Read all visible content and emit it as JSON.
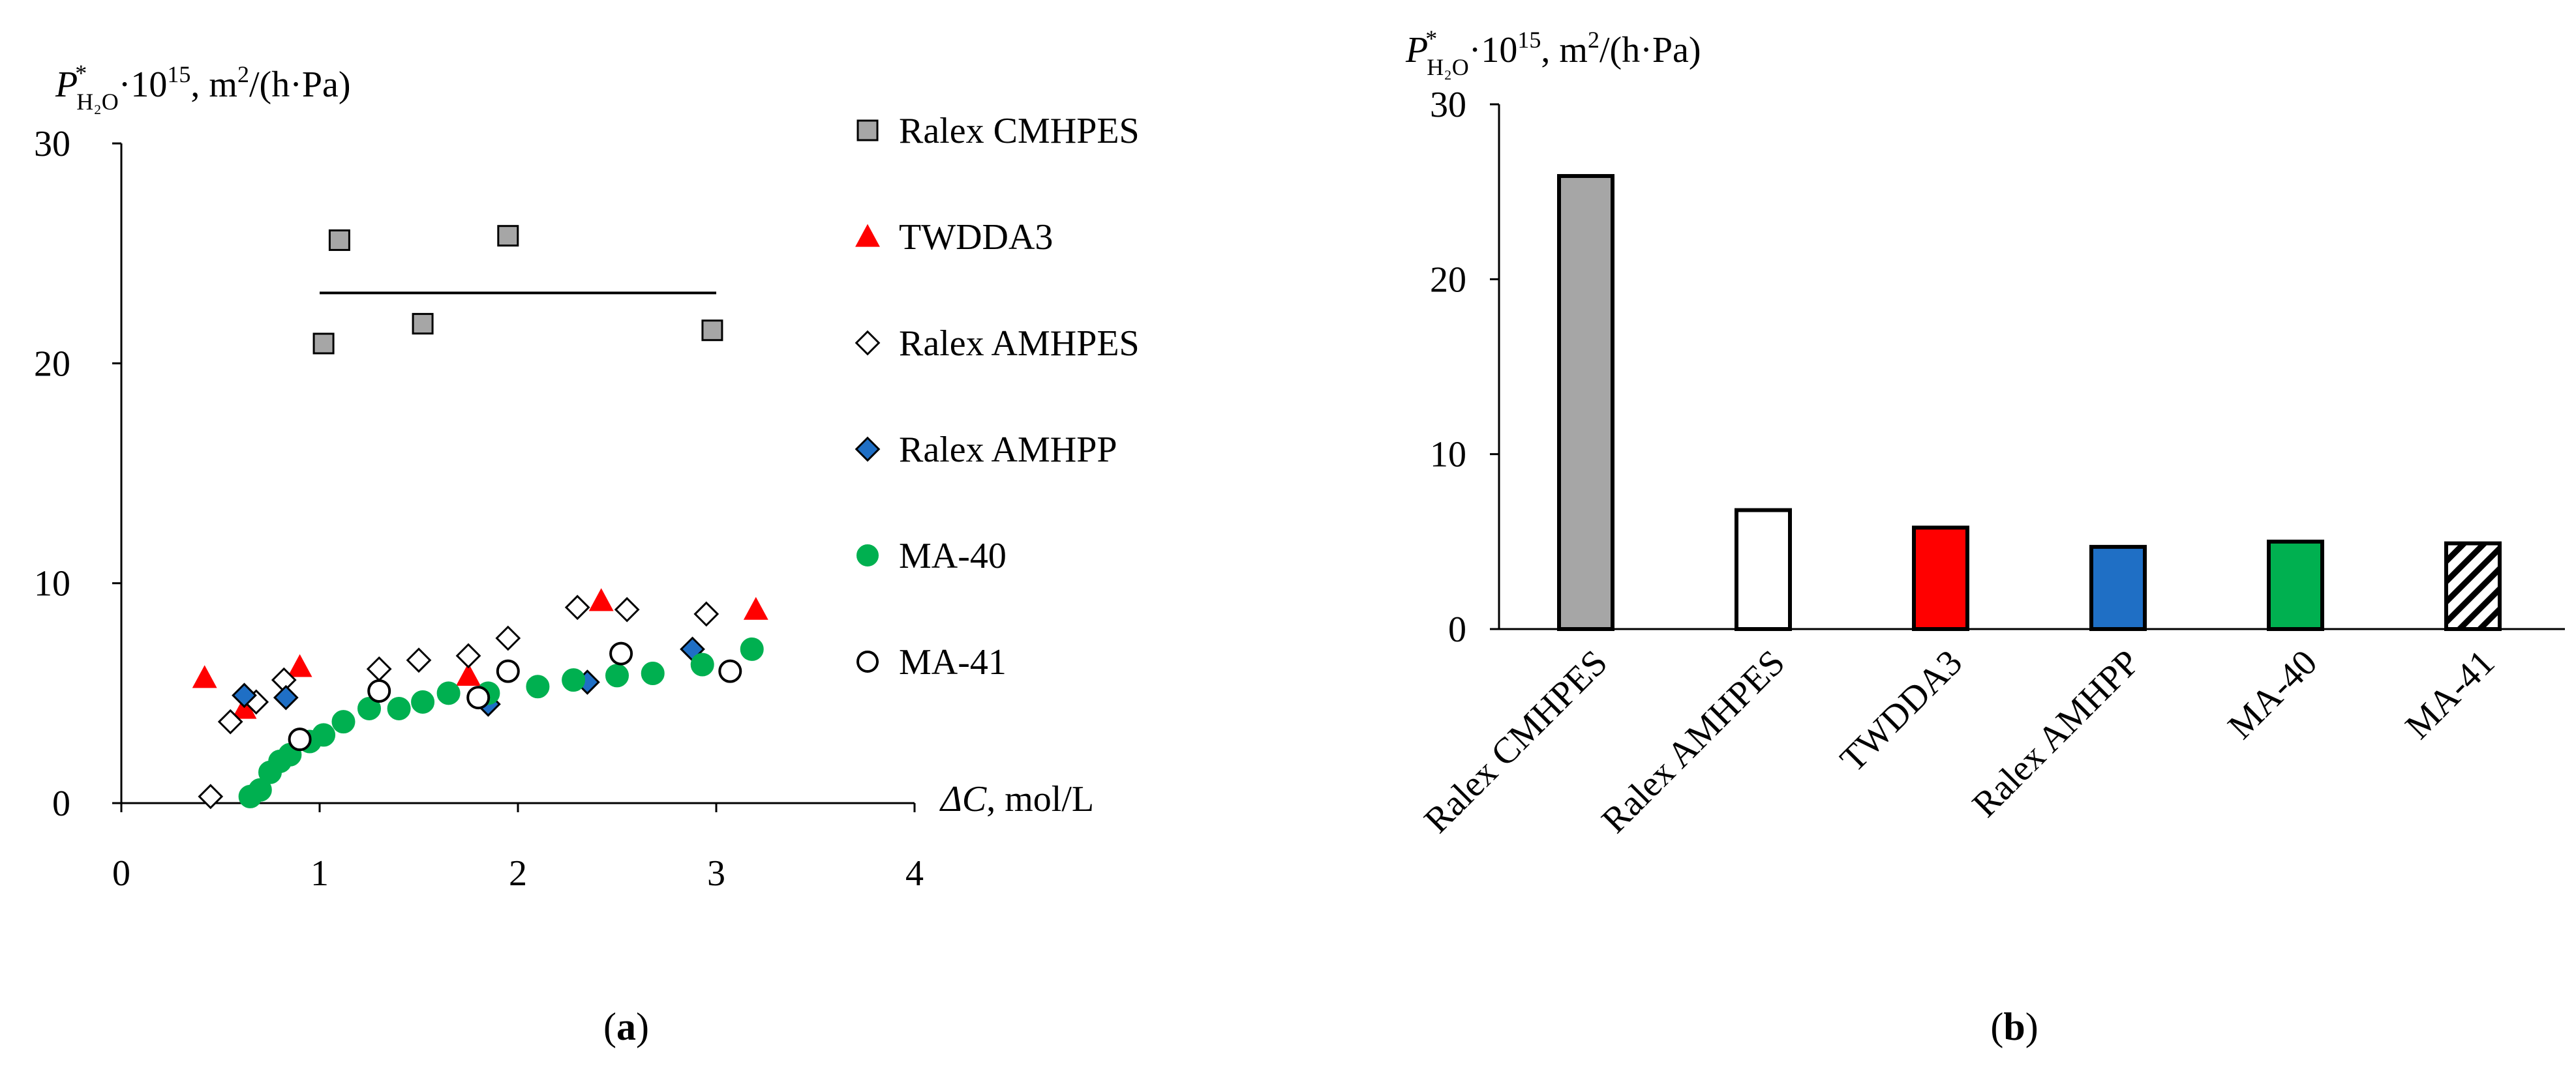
{
  "chart_data": [
    {
      "type": "scatter",
      "panel_label": "a",
      "ylabel": {
        "symbol": "P",
        "superscript": "*",
        "subscript": "H₂O",
        "multiplier": "·10",
        "exponent": "15",
        "units": ", m",
        "units_exp": "2",
        "units_rest": "/(h·Pa)"
      },
      "xlabel": {
        "symbol": "ΔC",
        "units": ", mol/L"
      },
      "xlim": [
        0,
        4
      ],
      "ylim": [
        0,
        30
      ],
      "x_ticks": [
        "0",
        "1",
        "2",
        "3",
        "4"
      ],
      "y_ticks": [
        "0",
        "10",
        "20",
        "30"
      ],
      "series": [
        {
          "name": "Ralex CMHPES",
          "marker": "square",
          "fill": "#a6a6a6",
          "stroke": "#000000",
          "points": [
            [
              1.02,
              20.9
            ],
            [
              1.1,
              25.6
            ],
            [
              1.52,
              21.8
            ],
            [
              1.95,
              25.8
            ],
            [
              2.98,
              21.5
            ]
          ]
        },
        {
          "name": "TWDDA3",
          "marker": "triangle",
          "fill": "#ff0000",
          "stroke": "#ff0000",
          "points": [
            [
              0.42,
              5.7
            ],
            [
              0.62,
              4.3
            ],
            [
              0.9,
              6.2
            ],
            [
              1.75,
              5.8
            ],
            [
              2.42,
              9.2
            ],
            [
              3.2,
              8.8
            ]
          ]
        },
        {
          "name": "Ralex AMHPES",
          "marker": "diamond",
          "fill": "#ffffff",
          "stroke": "#000000",
          "points": [
            [
              0.45,
              0.3
            ],
            [
              0.55,
              3.7
            ],
            [
              0.68,
              4.6
            ],
            [
              0.82,
              5.6
            ],
            [
              1.3,
              6.1
            ],
            [
              1.5,
              6.5
            ],
            [
              1.75,
              6.7
            ],
            [
              1.95,
              7.5
            ],
            [
              2.3,
              8.9
            ],
            [
              2.55,
              8.8
            ],
            [
              2.95,
              8.6
            ]
          ]
        },
        {
          "name": "Ralex AMHPP",
          "marker": "diamond",
          "fill": "#1f6fc5",
          "stroke": "#000000",
          "points": [
            [
              0.62,
              4.9
            ],
            [
              0.83,
              4.8
            ],
            [
              1.85,
              4.5
            ],
            [
              2.35,
              5.5
            ],
            [
              2.88,
              7.0
            ]
          ]
        },
        {
          "name": "MA-40",
          "marker": "circle",
          "fill": "#00b050",
          "stroke": "#00b050",
          "points": [
            [
              0.65,
              0.3
            ],
            [
              0.7,
              0.6
            ],
            [
              0.75,
              1.4
            ],
            [
              0.8,
              1.9
            ],
            [
              0.85,
              2.2
            ],
            [
              0.95,
              2.8
            ],
            [
              1.02,
              3.1
            ],
            [
              1.12,
              3.7
            ],
            [
              1.25,
              4.3
            ],
            [
              1.4,
              4.3
            ],
            [
              1.52,
              4.6
            ],
            [
              1.65,
              5.0
            ],
            [
              1.85,
              5.0
            ],
            [
              2.1,
              5.3
            ],
            [
              2.28,
              5.6
            ],
            [
              2.5,
              5.8
            ],
            [
              2.68,
              5.9
            ],
            [
              2.93,
              6.3
            ],
            [
              3.18,
              7.0
            ]
          ]
        },
        {
          "name": "MA-41",
          "marker": "circle",
          "fill": "#ffffff",
          "stroke": "#000000",
          "points": [
            [
              0.9,
              2.9
            ],
            [
              1.3,
              5.1
            ],
            [
              1.8,
              4.8
            ],
            [
              1.95,
              6.0
            ],
            [
              2.52,
              6.8
            ],
            [
              3.07,
              6.0
            ]
          ]
        }
      ],
      "trend_line": {
        "x": [
          1.0,
          3.0
        ],
        "y": 23.2
      }
    },
    {
      "type": "bar",
      "panel_label": "b",
      "ylabel": {
        "symbol": "P",
        "superscript": "*",
        "subscript": "H₂O",
        "multiplier": "·10",
        "exponent": "15",
        "units": ", m",
        "units_exp": "2",
        "units_rest": "/(h·Pa)"
      },
      "ylim": [
        0,
        30
      ],
      "y_ticks": [
        "0",
        "10",
        "20",
        "30"
      ],
      "categories": [
        "Ralex CMHPES",
        "Ralex AMHPES",
        "TWDDA3",
        "Ralex AMHPP",
        "MA-40",
        "MA-41"
      ],
      "values": [
        25.9,
        6.8,
        5.8,
        4.7,
        5.0,
        4.9
      ],
      "fills": [
        "#a6a6a6",
        "#ffffff",
        "#ff0000",
        "#1f6fc5",
        "#00b050",
        "hatch"
      ]
    }
  ]
}
